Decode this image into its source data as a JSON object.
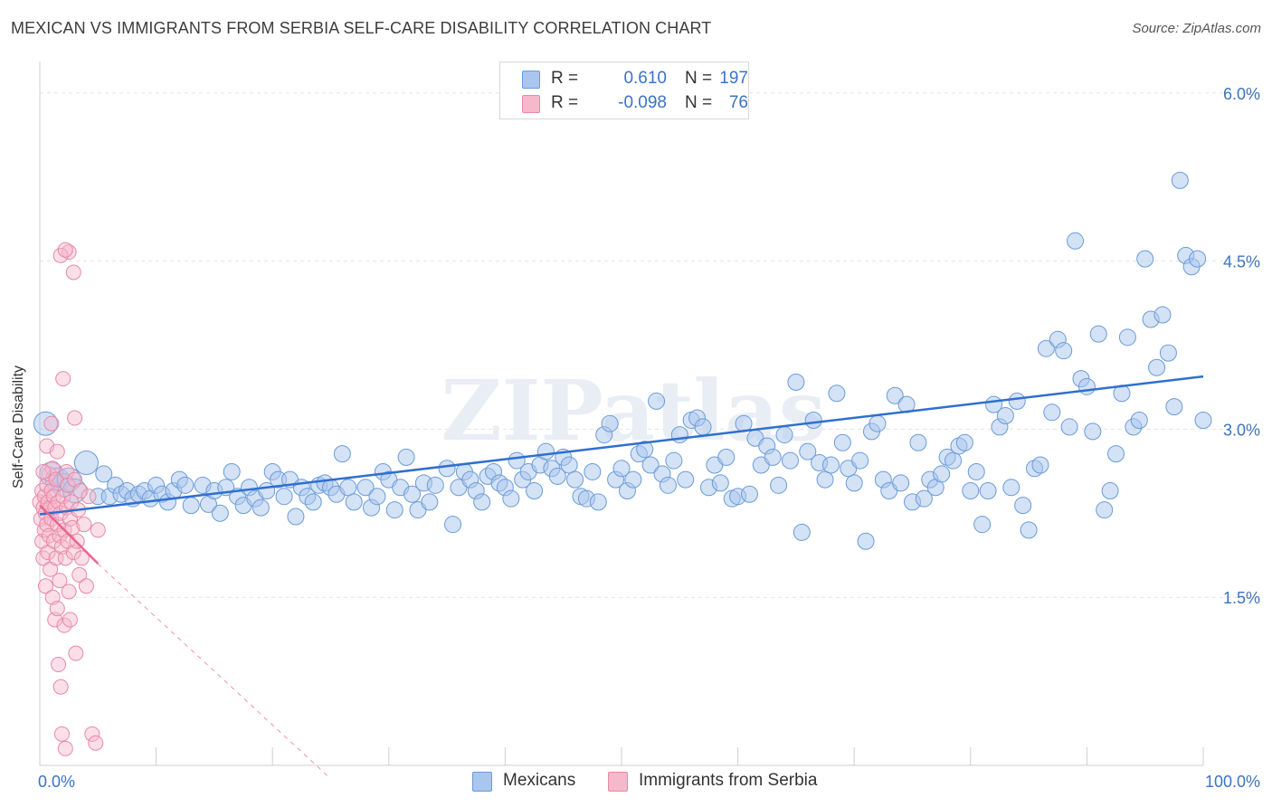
{
  "title": "MEXICAN VS IMMIGRANTS FROM SERBIA SELF-CARE DISABILITY CORRELATION CHART",
  "source": "Source: ZipAtlas.com",
  "watermark": "ZIPatlas",
  "colors": {
    "blue_fill": "#a9c6ee",
    "blue_stroke": "#6a9bd8",
    "blue_line": "#2f6fcf",
    "pink_fill": "#f6b8cb",
    "pink_stroke": "#e889a7",
    "pink_line": "#e8658c",
    "axis_text": "#3b73c6",
    "grid": "#e3e3e3"
  },
  "legend": {
    "rows": [
      {
        "r_label": "R =",
        "r_value": "0.610",
        "n_label": "N =",
        "n_value": "197",
        "color": "#a9c6ee"
      },
      {
        "r_label": "R =",
        "r_value": "-0.098",
        "n_label": "N =",
        "n_value": "76",
        "color": "#f6b8cb"
      }
    ]
  },
  "bottom_legend": [
    {
      "label": "Mexicans",
      "color": "#a9c6ee"
    },
    {
      "label": "Immigrants from Serbia",
      "color": "#f6b8cb"
    }
  ],
  "chart_data": {
    "type": "scatter",
    "title": "MEXICAN VS IMMIGRANTS FROM SERBIA SELF-CARE DISABILITY CORRELATION CHART",
    "xlabel": "",
    "ylabel": "Self-Care Disability",
    "xlim": [
      0,
      100
    ],
    "ylim": [
      0,
      6.2
    ],
    "x_tick_labels": [
      "0.0%",
      "100.0%"
    ],
    "y_ticks": [
      1.5,
      3.0,
      4.5,
      6.0
    ],
    "y_tick_labels": [
      "1.5%",
      "3.0%",
      "4.5%",
      "6.0%"
    ],
    "grid": true,
    "series": [
      {
        "name": "Mexicans",
        "R": 0.61,
        "N": 197,
        "trend": {
          "x": [
            0,
            100
          ],
          "y": [
            2.24,
            3.47
          ]
        },
        "points": [
          [
            0.5,
            3.05
          ],
          [
            1.0,
            2.6
          ],
          [
            1.5,
            2.55
          ],
          [
            2.0,
            2.5
          ],
          [
            2.5,
            2.55
          ],
          [
            3.0,
            2.45
          ],
          [
            4.0,
            2.7
          ],
          [
            5.0,
            2.4
          ],
          [
            5.5,
            2.6
          ],
          [
            6.0,
            2.4
          ],
          [
            6.5,
            2.5
          ],
          [
            7.0,
            2.42
          ],
          [
            7.5,
            2.45
          ],
          [
            8.0,
            2.38
          ],
          [
            8.5,
            2.42
          ],
          [
            9.0,
            2.45
          ],
          [
            9.5,
            2.38
          ],
          [
            10.0,
            2.5
          ],
          [
            10.5,
            2.42
          ],
          [
            11.0,
            2.35
          ],
          [
            11.5,
            2.45
          ],
          [
            12.0,
            2.55
          ],
          [
            12.5,
            2.5
          ],
          [
            13.0,
            2.32
          ],
          [
            14.0,
            2.5
          ],
          [
            14.5,
            2.33
          ],
          [
            15.0,
            2.45
          ],
          [
            15.5,
            2.25
          ],
          [
            16.0,
            2.48
          ],
          [
            16.5,
            2.62
          ],
          [
            17.0,
            2.4
          ],
          [
            17.5,
            2.32
          ],
          [
            18.0,
            2.48
          ],
          [
            18.5,
            2.38
          ],
          [
            19.0,
            2.3
          ],
          [
            19.5,
            2.45
          ],
          [
            20.0,
            2.62
          ],
          [
            20.5,
            2.55
          ],
          [
            21.0,
            2.4
          ],
          [
            21.5,
            2.55
          ],
          [
            22.0,
            2.22
          ],
          [
            22.5,
            2.48
          ],
          [
            23.0,
            2.4
          ],
          [
            23.5,
            2.35
          ],
          [
            24.0,
            2.5
          ],
          [
            24.5,
            2.52
          ],
          [
            25.0,
            2.48
          ],
          [
            25.5,
            2.42
          ],
          [
            26.0,
            2.78
          ],
          [
            26.5,
            2.48
          ],
          [
            27.0,
            2.35
          ],
          [
            28.0,
            2.48
          ],
          [
            28.5,
            2.3
          ],
          [
            29.0,
            2.4
          ],
          [
            29.5,
            2.62
          ],
          [
            30.0,
            2.55
          ],
          [
            30.5,
            2.28
          ],
          [
            31.0,
            2.48
          ],
          [
            31.5,
            2.75
          ],
          [
            32.0,
            2.42
          ],
          [
            32.5,
            2.28
          ],
          [
            33.0,
            2.52
          ],
          [
            33.5,
            2.35
          ],
          [
            34.0,
            2.5
          ],
          [
            35.0,
            2.65
          ],
          [
            35.5,
            2.15
          ],
          [
            36.0,
            2.48
          ],
          [
            36.5,
            2.62
          ],
          [
            37.0,
            2.55
          ],
          [
            37.5,
            2.45
          ],
          [
            38.0,
            2.35
          ],
          [
            38.5,
            2.58
          ],
          [
            39.0,
            2.62
          ],
          [
            39.5,
            2.52
          ],
          [
            40.0,
            2.48
          ],
          [
            40.5,
            2.38
          ],
          [
            41.0,
            2.72
          ],
          [
            41.5,
            2.55
          ],
          [
            42.0,
            2.62
          ],
          [
            42.5,
            2.45
          ],
          [
            43.0,
            2.68
          ],
          [
            43.5,
            2.8
          ],
          [
            44.0,
            2.65
          ],
          [
            44.5,
            2.58
          ],
          [
            45.0,
            2.75
          ],
          [
            45.5,
            2.68
          ],
          [
            46.0,
            2.55
          ],
          [
            46.5,
            2.4
          ],
          [
            47.0,
            2.38
          ],
          [
            47.5,
            2.62
          ],
          [
            48.0,
            2.35
          ],
          [
            48.5,
            2.95
          ],
          [
            49.0,
            3.05
          ],
          [
            49.5,
            2.55
          ],
          [
            50.0,
            2.65
          ],
          [
            50.5,
            2.45
          ],
          [
            51.0,
            2.55
          ],
          [
            51.5,
            2.78
          ],
          [
            52.0,
            2.82
          ],
          [
            52.5,
            2.68
          ],
          [
            53.0,
            3.25
          ],
          [
            53.5,
            2.6
          ],
          [
            54.0,
            2.5
          ],
          [
            54.5,
            2.72
          ],
          [
            55.0,
            2.95
          ],
          [
            55.5,
            2.55
          ],
          [
            56.0,
            3.08
          ],
          [
            56.5,
            3.1
          ],
          [
            57.0,
            3.02
          ],
          [
            57.5,
            2.48
          ],
          [
            58.0,
            2.68
          ],
          [
            58.5,
            2.52
          ],
          [
            59.0,
            2.75
          ],
          [
            59.5,
            2.38
          ],
          [
            60.0,
            2.4
          ],
          [
            60.5,
            3.05
          ],
          [
            61.0,
            2.42
          ],
          [
            61.5,
            2.92
          ],
          [
            62.0,
            2.68
          ],
          [
            62.5,
            2.85
          ],
          [
            63.0,
            2.75
          ],
          [
            63.5,
            2.5
          ],
          [
            64.0,
            2.95
          ],
          [
            64.5,
            2.72
          ],
          [
            65.0,
            3.42
          ],
          [
            65.5,
            2.08
          ],
          [
            66.0,
            2.8
          ],
          [
            66.5,
            3.08
          ],
          [
            67.0,
            2.7
          ],
          [
            67.5,
            2.55
          ],
          [
            68.0,
            2.68
          ],
          [
            68.5,
            3.32
          ],
          [
            69.0,
            2.88
          ],
          [
            69.5,
            2.65
          ],
          [
            70.0,
            2.52
          ],
          [
            70.5,
            2.72
          ],
          [
            71.0,
            2.0
          ],
          [
            71.5,
            2.98
          ],
          [
            72.0,
            3.05
          ],
          [
            72.5,
            2.55
          ],
          [
            73.0,
            2.45
          ],
          [
            73.5,
            3.3
          ],
          [
            74.0,
            2.52
          ],
          [
            74.5,
            3.22
          ],
          [
            75.0,
            2.35
          ],
          [
            75.5,
            2.88
          ],
          [
            76.0,
            2.38
          ],
          [
            76.5,
            2.55
          ],
          [
            77.0,
            2.48
          ],
          [
            77.5,
            2.6
          ],
          [
            78.0,
            2.75
          ],
          [
            78.5,
            2.72
          ],
          [
            79.0,
            2.85
          ],
          [
            79.5,
            2.88
          ],
          [
            80.0,
            2.45
          ],
          [
            80.5,
            2.62
          ],
          [
            81.0,
            2.15
          ],
          [
            81.5,
            2.45
          ],
          [
            82.0,
            3.22
          ],
          [
            82.5,
            3.02
          ],
          [
            83.0,
            3.12
          ],
          [
            83.5,
            2.48
          ],
          [
            84.0,
            3.25
          ],
          [
            84.5,
            2.32
          ],
          [
            85.0,
            2.1
          ],
          [
            85.5,
            2.65
          ],
          [
            86.0,
            2.68
          ],
          [
            86.5,
            3.72
          ],
          [
            87.0,
            3.15
          ],
          [
            87.5,
            3.8
          ],
          [
            88.0,
            3.7
          ],
          [
            88.5,
            3.02
          ],
          [
            89.0,
            4.68
          ],
          [
            89.5,
            3.45
          ],
          [
            90.0,
            3.38
          ],
          [
            90.5,
            2.98
          ],
          [
            91.0,
            3.85
          ],
          [
            91.5,
            2.28
          ],
          [
            92.0,
            2.45
          ],
          [
            92.5,
            2.78
          ],
          [
            93.0,
            3.32
          ],
          [
            93.5,
            3.82
          ],
          [
            94.0,
            3.02
          ],
          [
            94.5,
            3.08
          ],
          [
            95.0,
            4.52
          ],
          [
            95.5,
            3.98
          ],
          [
            96.0,
            3.55
          ],
          [
            96.5,
            4.02
          ],
          [
            97.0,
            3.68
          ],
          [
            97.5,
            3.2
          ],
          [
            98.0,
            5.22
          ],
          [
            98.5,
            4.55
          ],
          [
            99.0,
            4.45
          ],
          [
            99.5,
            4.52
          ],
          [
            100.0,
            3.08
          ]
        ]
      },
      {
        "name": "Immigrants from Serbia",
        "R": -0.098,
        "N": 76,
        "trend": {
          "x": [
            0,
            5.0
          ],
          "y": [
            2.32,
            1.8
          ],
          "dashed_extension": {
            "x": [
              5.0,
              24.8
            ],
            "y": [
              1.8,
              -0.1
            ]
          }
        },
        "points": [
          [
            0.0,
            2.35
          ],
          [
            0.1,
            2.2
          ],
          [
            0.2,
            2.45
          ],
          [
            0.2,
            2.0
          ],
          [
            0.3,
            2.3
          ],
          [
            0.3,
            1.85
          ],
          [
            0.4,
            2.4
          ],
          [
            0.4,
            2.1
          ],
          [
            0.5,
            2.25
          ],
          [
            0.5,
            1.6
          ],
          [
            0.6,
            2.5
          ],
          [
            0.6,
            2.15
          ],
          [
            0.7,
            2.35
          ],
          [
            0.7,
            1.9
          ],
          [
            0.8,
            2.6
          ],
          [
            0.8,
            2.05
          ],
          [
            0.9,
            2.3
          ],
          [
            0.9,
            1.75
          ],
          [
            1.0,
            2.45
          ],
          [
            1.0,
            2.2
          ],
          [
            1.1,
            1.5
          ],
          [
            1.1,
            2.65
          ],
          [
            1.2,
            2.0
          ],
          [
            1.2,
            2.4
          ],
          [
            1.3,
            1.3
          ],
          [
            1.3,
            2.3
          ],
          [
            1.4,
            1.85
          ],
          [
            1.4,
            2.55
          ],
          [
            1.5,
            2.15
          ],
          [
            1.5,
            1.4
          ],
          [
            1.6,
            2.35
          ],
          [
            1.6,
            0.9
          ],
          [
            1.7,
            2.05
          ],
          [
            1.7,
            1.65
          ],
          [
            1.8,
            2.25
          ],
          [
            1.8,
            0.7
          ],
          [
            1.9,
            1.95
          ],
          [
            1.9,
            0.28
          ],
          [
            2.0,
            2.4
          ],
          [
            2.0,
            3.45
          ],
          [
            2.1,
            2.1
          ],
          [
            2.1,
            1.25
          ],
          [
            2.2,
            1.85
          ],
          [
            2.2,
            0.15
          ],
          [
            2.3,
            2.3
          ],
          [
            2.3,
            2.62
          ],
          [
            2.4,
            2.0
          ],
          [
            2.4,
            2.5
          ],
          [
            2.5,
            1.55
          ],
          [
            2.5,
            4.58
          ],
          [
            2.6,
            2.2
          ],
          [
            2.6,
            1.3
          ],
          [
            2.7,
            2.35
          ],
          [
            2.8,
            2.12
          ],
          [
            2.9,
            1.9
          ],
          [
            3.0,
            2.55
          ],
          [
            3.0,
            3.1
          ],
          [
            3.1,
            1.0
          ],
          [
            3.2,
            2.0
          ],
          [
            3.3,
            2.28
          ],
          [
            3.4,
            1.7
          ],
          [
            3.5,
            2.45
          ],
          [
            3.6,
            1.85
          ],
          [
            3.8,
            2.15
          ],
          [
            4.0,
            1.6
          ],
          [
            4.2,
            2.4
          ],
          [
            4.5,
            0.28
          ],
          [
            4.8,
            0.2
          ],
          [
            5.0,
            2.1
          ],
          [
            0.3,
            2.62
          ],
          [
            0.6,
            2.85
          ],
          [
            1.0,
            3.05
          ],
          [
            1.5,
            2.8
          ],
          [
            1.8,
            4.55
          ],
          [
            2.2,
            4.6
          ],
          [
            2.9,
            4.4
          ]
        ]
      }
    ]
  }
}
